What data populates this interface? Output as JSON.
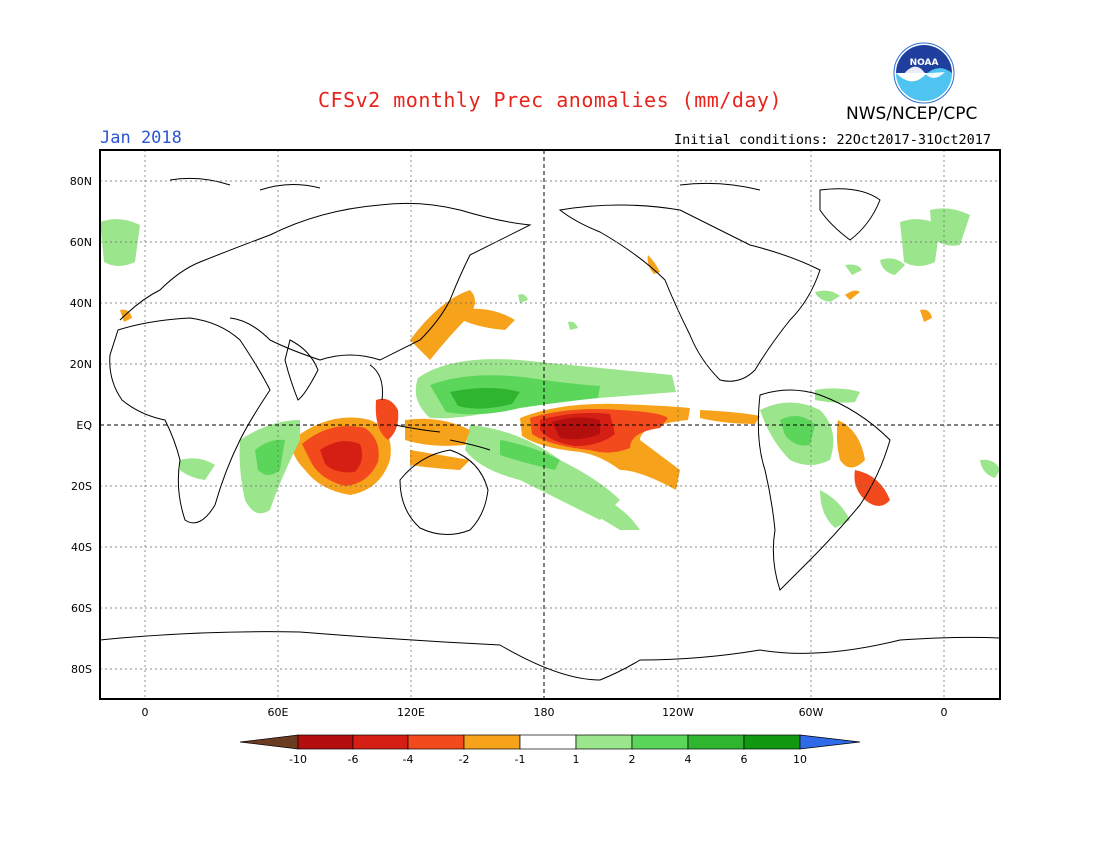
{
  "header": {
    "title": "CFSv2 monthly Prec anomalies (mm/day)",
    "organization": "NWS/NCEP/CPC",
    "month": "Jan 2018",
    "initial_conditions": "Initial conditions: 22Oct2017-31Oct2017"
  },
  "map": {
    "lat_labels": [
      "80N",
      "60N",
      "40N",
      "20N",
      "EQ",
      "20S",
      "40S",
      "60S",
      "80S"
    ],
    "lon_labels": [
      "0",
      "60E",
      "120E",
      "180",
      "120W",
      "60W",
      "0"
    ],
    "colors": {
      "frame": "#000000",
      "grid": "#666666",
      "coast": "#000000"
    }
  },
  "colorbar": {
    "tick_labels": [
      "-10",
      "-6",
      "-4",
      "-2",
      "-1",
      "1",
      "2",
      "4",
      "6",
      "10"
    ],
    "colors": [
      "#6b3b22",
      "#b40f0f",
      "#d61f14",
      "#f24a1d",
      "#f7a21b",
      "#ffffff",
      "#9be58c",
      "#5bd65b",
      "#2fb52f",
      "#119911",
      "#2f6ae8"
    ]
  },
  "logo_text": "NOAA"
}
